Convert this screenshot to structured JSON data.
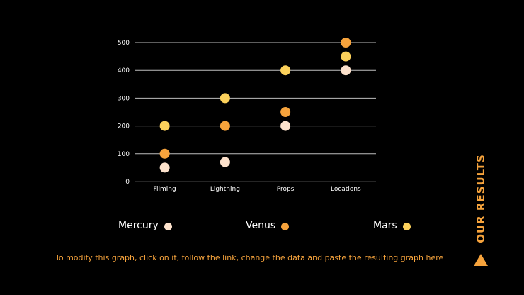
{
  "chart_data": {
    "type": "scatter",
    "categories": [
      "Filming",
      "Lightning",
      "Props",
      "Locations"
    ],
    "series": [
      {
        "name": "Mercury",
        "values": [
          50,
          70,
          200,
          400
        ],
        "color": "#fde2cc"
      },
      {
        "name": "Venus",
        "values": [
          100,
          200,
          250,
          500
        ],
        "color": "#f6a33c"
      },
      {
        "name": "Mars",
        "values": [
          200,
          300,
          400,
          450
        ],
        "color": "#fcd15b"
      }
    ],
    "ylim": [
      0,
      500
    ],
    "yticks": [
      0,
      100,
      200,
      300,
      400,
      500
    ],
    "grid": true,
    "legend_position": "bottom"
  },
  "legend": {
    "items": [
      {
        "label": "Mercury",
        "color": "#fde2cc"
      },
      {
        "label": "Venus",
        "color": "#f6a33c"
      },
      {
        "label": "Mars",
        "color": "#fcd15b"
      }
    ]
  },
  "footer": {
    "note": "To modify this graph, click on it, follow the link, change the data and paste the resulting graph here"
  },
  "side": {
    "title": "OUR RESULTS",
    "arrow_icon": "triangle-up-icon"
  },
  "colors": {
    "background": "#000000",
    "accent": "#f6a33c"
  }
}
